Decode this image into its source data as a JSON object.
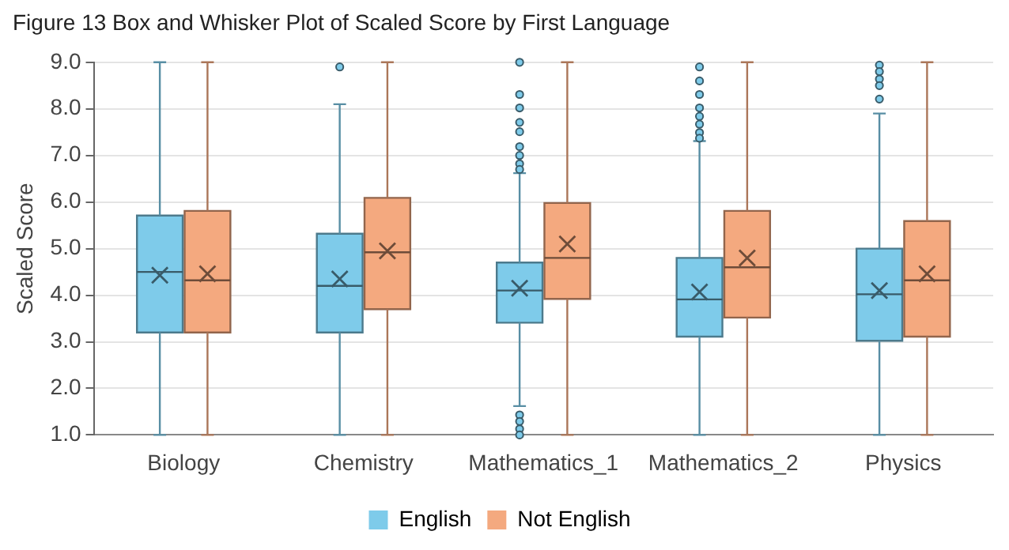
{
  "chart_data": {
    "type": "box",
    "title": "Figure 13 Box and Whisker Plot of Scaled Score by First Language",
    "ylabel": "Scaled Score",
    "categories": [
      "Biology",
      "Chemistry",
      "Mathematics_1",
      "Mathematics_2",
      "Physics"
    ],
    "series": [
      {
        "name": "English",
        "color": "#7ecbea",
        "boxes": [
          {
            "low": 1.0,
            "q1": 3.2,
            "median": 4.5,
            "q3": 5.71,
            "high": 9.0,
            "mean": 4.43
          },
          {
            "low": 1.0,
            "q1": 3.2,
            "median": 4.2,
            "q3": 5.32,
            "high": 8.1,
            "mean": 4.35,
            "outliers": [
              8.9
            ]
          },
          {
            "low": 1.62,
            "q1": 3.41,
            "median": 4.1,
            "q3": 4.7,
            "high": 6.62,
            "mean": 4.15,
            "outliers": [
              9.0,
              8.31,
              8.02,
              7.71,
              7.51,
              7.19,
              7.0,
              6.82,
              6.7,
              1.43,
              1.29,
              1.13,
              1.0
            ]
          },
          {
            "low": 1.0,
            "q1": 3.11,
            "median": 3.91,
            "q3": 4.8,
            "high": 7.31,
            "mean": 4.07,
            "outliers": [
              8.9,
              8.6,
              8.31,
              8.02,
              7.84,
              7.67,
              7.49,
              7.37
            ]
          },
          {
            "low": 1.0,
            "q1": 3.02,
            "median": 4.02,
            "q3": 5.0,
            "high": 7.9,
            "mean": 4.1,
            "outliers": [
              8.94,
              8.8,
              8.64,
              8.5,
              8.21
            ]
          }
        ]
      },
      {
        "name": "Not English",
        "color": "#f4a97f",
        "boxes": [
          {
            "low": 1.0,
            "q1": 3.2,
            "median": 4.32,
            "q3": 5.81,
            "high": 9.0,
            "mean": 4.46
          },
          {
            "low": 1.0,
            "q1": 3.7,
            "median": 4.92,
            "q3": 6.09,
            "high": 9.0,
            "mean": 4.95
          },
          {
            "low": 1.0,
            "q1": 3.92,
            "median": 4.8,
            "q3": 5.98,
            "high": 9.0,
            "mean": 5.1
          },
          {
            "low": 1.0,
            "q1": 3.52,
            "median": 4.6,
            "q3": 5.81,
            "high": 9.0,
            "mean": 4.8
          },
          {
            "low": 1.0,
            "q1": 3.11,
            "median": 4.32,
            "q3": 5.59,
            "high": 9.0,
            "mean": 4.46
          }
        ]
      }
    ],
    "ylim": [
      1,
      9
    ],
    "yticks": [
      {
        "value": 1,
        "label": "1.0"
      },
      {
        "value": 2,
        "label": "2.0"
      },
      {
        "value": 3,
        "label": "3.0"
      },
      {
        "value": 4,
        "label": "4.0"
      },
      {
        "value": 5,
        "label": "5.0"
      },
      {
        "value": 6,
        "label": "6.0"
      },
      {
        "value": 7,
        "label": "7.0"
      },
      {
        "value": 8,
        "label": "8.0"
      },
      {
        "value": 9,
        "label": "9.0"
      }
    ],
    "grid": "y",
    "legend": "bottom"
  }
}
